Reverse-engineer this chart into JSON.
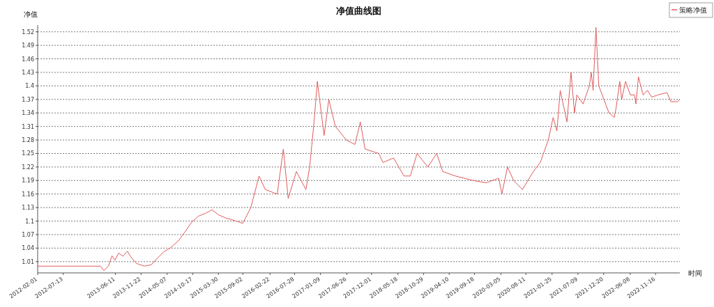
{
  "chart_data": {
    "type": "line",
    "title": "净值曲线图",
    "xlabel": "时间",
    "ylabel": "净值",
    "x": [
      "2012-02-01",
      "2013-03-08",
      "2013-03-29",
      "2013-04-28",
      "2013-05-20",
      "2013-06-08",
      "2013-07-02",
      "2013-07-29",
      "2013-08-26",
      "2013-09-20",
      "2013-10-23",
      "2013-12-14",
      "2014-01-26",
      "2014-03-09",
      "2014-04-20",
      "2014-05-26",
      "2014-07-17",
      "2014-08-29",
      "2014-10-11",
      "2014-11-23",
      "2015-01-05",
      "2015-02-17",
      "2015-03-30",
      "2015-05-14",
      "2015-06-26",
      "2015-09-01",
      "2015-10-23",
      "2015-12-14",
      "2016-01-23",
      "2016-04-08",
      "2016-05-17",
      "2016-06-17",
      "2016-08-08",
      "2016-10-08",
      "2016-11-01",
      "2016-11-29",
      "2016-12-20",
      "2017-02-01",
      "2017-03-03",
      "2017-04-14",
      "2017-06-23",
      "2017-08-17",
      "2017-09-20",
      "2017-10-20",
      "2018-01-16",
      "2018-02-11",
      "2018-04-20",
      "2018-06-26",
      "2018-08-05",
      "2018-09-17",
      "2018-11-25",
      "2019-01-20",
      "2019-02-28",
      "2019-05-20",
      "2019-09-11",
      "2019-12-01",
      "2020-02-20",
      "2020-03-11",
      "2020-04-16",
      "2020-05-25",
      "2020-07-20",
      "2020-09-28",
      "2020-11-11",
      "2021-01-01",
      "2021-02-01",
      "2021-02-25",
      "2021-03-18",
      "2021-04-30",
      "2021-05-26",
      "2021-06-17",
      "2021-07-02",
      "2021-08-11",
      "2021-09-20",
      "2021-10-02",
      "2021-10-14",
      "2021-11-01",
      "2021-11-19",
      "2021-12-11",
      "2022-01-23",
      "2022-02-26",
      "2022-03-09",
      "2022-04-02",
      "2022-04-14",
      "2022-05-09",
      "2022-06-08",
      "2022-07-05",
      "2022-07-14",
      "2022-07-30",
      "2022-08-29",
      "2022-09-25",
      "2022-10-23",
      "2022-12-01",
      "2023-01-28",
      "2023-02-22",
      "2023-04-05",
      "2023-04-20"
    ],
    "series": [
      {
        "name": "策略净值",
        "color": "#e05a5a",
        "values": [
          1.0,
          1.0,
          0.99,
          1.0,
          1.023,
          1.013,
          1.029,
          1.022,
          1.033,
          1.019,
          1.006,
          1.0,
          1.003,
          1.019,
          1.033,
          1.04,
          1.056,
          1.076,
          1.098,
          1.111,
          1.117,
          1.125,
          1.114,
          1.107,
          1.103,
          1.095,
          1.13,
          1.2,
          1.17,
          1.16,
          1.26,
          1.15,
          1.21,
          1.17,
          1.22,
          1.32,
          1.41,
          1.29,
          1.37,
          1.31,
          1.28,
          1.27,
          1.32,
          1.26,
          1.25,
          1.23,
          1.24,
          1.2,
          1.2,
          1.25,
          1.22,
          1.25,
          1.21,
          1.2,
          1.19,
          1.185,
          1.195,
          1.16,
          1.22,
          1.19,
          1.17,
          1.21,
          1.23,
          1.28,
          1.33,
          1.3,
          1.39,
          1.32,
          1.43,
          1.34,
          1.38,
          1.36,
          1.4,
          1.43,
          1.39,
          1.53,
          1.4,
          1.38,
          1.34,
          1.33,
          1.35,
          1.41,
          1.37,
          1.41,
          1.38,
          1.38,
          1.36,
          1.42,
          1.38,
          1.39,
          1.375,
          1.38,
          1.385,
          1.365,
          1.365,
          1.37
        ]
      }
    ],
    "xlim": [
      "2012-02-01",
      "2023-04-20"
    ],
    "xticks": [
      "2012-02-01",
      "2012-07-13",
      "2013-06-11",
      "2013-11-22",
      "2014-05-07",
      "2014-10-17",
      "2015-03-30",
      "2015-09-02",
      "2016-02-22",
      "2016-07-28",
      "2017-01-09",
      "2017-06-26",
      "2017-12-01",
      "2018-05-18",
      "2018-10-29",
      "2019-04-10",
      "2019-09-18",
      "2020-03-05",
      "2020-08-11",
      "2021-01-25",
      "2021-07-09",
      "2021-12-20",
      "2022-06-08",
      "2022-11-16"
    ],
    "ylim": [
      0.985,
      1.535
    ],
    "yticks": [
      1.01,
      1.04,
      1.07,
      1.1,
      1.13,
      1.16,
      1.19,
      1.22,
      1.25,
      1.28,
      1.31,
      1.34,
      1.37,
      1.4,
      1.43,
      1.46,
      1.49,
      1.52
    ],
    "grid": "y",
    "legend": "top right",
    "marker": "none",
    "line_style": "solid"
  }
}
